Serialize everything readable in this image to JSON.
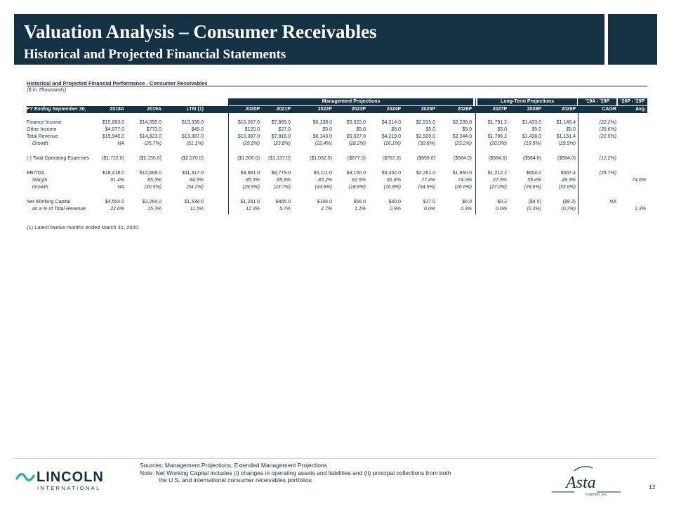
{
  "header": {
    "title": "Valuation Analysis – Consumer Receivables",
    "subtitle": "Historical and Projected Financial Statements"
  },
  "table": {
    "heading": "Historical and Projected Financial Performance - Consumer Receivables",
    "units": "($ in Thousands)",
    "band_management": "Management Projections",
    "band_long_term": "Long-Term Projections",
    "band_cagr_range": "'19A - '29P",
    "band_avg_range": "'20P - '29P",
    "fy_label": "FY Ending September 30,",
    "columns": [
      "2018A",
      "2019A",
      "LTM (1)",
      "2020P",
      "2021P",
      "2022P",
      "2023P",
      "2024P",
      "2025P",
      "2026P",
      "2027P",
      "2028P",
      "2029P",
      "CAGR",
      "Avg."
    ],
    "rows": [
      {
        "label": "Finance Income",
        "italic": false,
        "values": [
          "$15,863.0",
          "$14,050.0",
          "$13,338.0",
          "$10,267.0",
          "$7,889.0",
          "$6,138.0",
          "$5,022.0",
          "$4,214.0",
          "$2,915.0",
          "$2,239.0",
          "$1,791.2",
          "$1,433.0",
          "$1,146.4",
          "(22.2%)",
          ""
        ]
      },
      {
        "label": "Other Income",
        "italic": false,
        "values": [
          "$4,077.0",
          "$773.0",
          "$49.0",
          "$120.0",
          "$27.0",
          "$5.0",
          "$5.0",
          "$5.0",
          "$5.0",
          "$5.0",
          "$5.0",
          "$5.0",
          "$5.0",
          "(39.6%)",
          ""
        ]
      },
      {
        "label": "Total Revenue",
        "italic": false,
        "values": [
          "$19,940.0",
          "$14,823.0",
          "$13,387.0",
          "$10,387.0",
          "$7,916.0",
          "$6,143.0",
          "$5,027.0",
          "$4,219.0",
          "$2,920.0",
          "$2,244.0",
          "$1,796.2",
          "$1,438.0",
          "$1,151.4",
          "(22.5%)",
          ""
        ]
      },
      {
        "label": "Growth",
        "italic": true,
        "values": [
          "NA",
          "(25.7%)",
          "(51.1%)",
          "(29.9%)",
          "(23.8%)",
          "(22.4%)",
          "(18.2%)",
          "(16.1%)",
          "(30.8%)",
          "(23.2%)",
          "(20.0%)",
          "(19.9%)",
          "(19.9%)",
          "",
          ""
        ]
      },
      {
        "label": "(-) Total Operating Expenses",
        "italic": false,
        "values": [
          "($1,722.0)",
          "($2,155.0)",
          "($2,070.0)",
          "($1,506.0)",
          "($1,137.0)",
          "($1,032.0)",
          "($877.0)",
          "($767.0)",
          "($659.0)",
          "($584.0)",
          "($584.0)",
          "($584.0)",
          "($584.0)",
          "(12.2%)",
          ""
        ]
      },
      {
        "label": "EBITDA",
        "italic": false,
        "values": [
          "$18,218.0",
          "$12,668.0",
          "$11,317.0",
          "$8,881.0",
          "$6,779.0",
          "$5,111.0",
          "$4,150.0",
          "$3,452.0",
          "$2,261.0",
          "$1,660.0",
          "$1,212.2",
          "$854.0",
          "$567.4",
          "(26.7%)",
          ""
        ]
      },
      {
        "label": "Margin",
        "italic": true,
        "values": [
          "91.4%",
          "85.5%",
          "84.5%",
          "85.5%",
          "85.6%",
          "83.2%",
          "82.6%",
          "81.8%",
          "77.4%",
          "74.0%",
          "67.5%",
          "59.4%",
          "49.3%",
          "",
          "74.6%"
        ]
      },
      {
        "label": "Growth",
        "italic": true,
        "values": [
          "NA",
          "(30.5%)",
          "(54.2%)",
          "(29.9%)",
          "(23.7%)",
          "(24.6%)",
          "(18.8%)",
          "(16.8%)",
          "(34.5%)",
          "(26.6%)",
          "(27.0%)",
          "(29.6%)",
          "(33.6%)",
          "",
          ""
        ]
      },
      {
        "label": "Net Working Capital",
        "italic": false,
        "values": [
          "$4,504.0",
          "$2,264.0",
          "$1,538.0",
          "$1,281.0",
          "$455.0",
          "$166.0",
          "$56.0",
          "$40.0",
          "$17.0",
          "$6.0",
          "$0.2",
          "($4.5)",
          "($8.2)",
          "NA",
          ""
        ]
      },
      {
        "label": "as a % of Total Revenue",
        "italic": true,
        "values": [
          "22.6%",
          "15.3%",
          "11.5%",
          "12.3%",
          "5.7%",
          "2.7%",
          "1.1%",
          "0.9%",
          "0.6%",
          "0.3%",
          "0.0%",
          "(0.3%)",
          "(0.7%)",
          "",
          "2.3%"
        ]
      }
    ],
    "footnote": "(1) Latest twelve months ended March 31, 2020"
  },
  "footer": {
    "sources": "Sources: Management Projections; Extended Management Projections",
    "note_line1": "Note: Net Working Capital includes (i) changes in operating assets and liabilities and (ii) principal collections from both",
    "note_line2": "the U.S. and international consumer receivables portfolios",
    "logo_lincoln": "LINCOLN",
    "logo_lincoln_sub": "INTERNATIONAL",
    "logo_asta": "Asta",
    "logo_asta_sub": "FUNDING, INC.",
    "page_number": "12"
  },
  "colors": {
    "navy": "#143244",
    "text": "#1f2a38"
  }
}
